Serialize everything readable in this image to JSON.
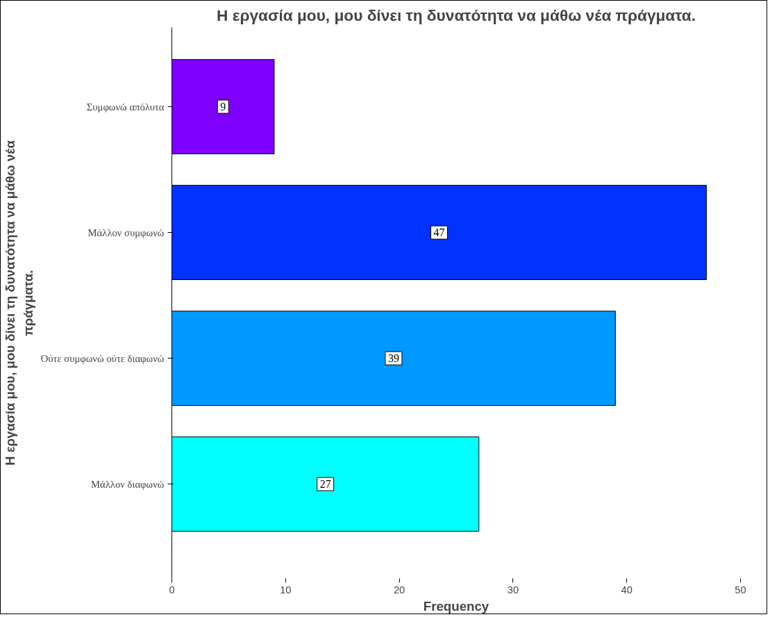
{
  "chart_data": {
    "type": "bar",
    "orientation": "horizontal",
    "title": "Η εργασία μου, μου δίνει τη δυνατότητα να μάθω νέα πράγματα.",
    "xlabel": "Frequency",
    "ylabel": "Η εργασία μου, μου δίνει τη δυνατότητα να μάθω νέα πράγματα.",
    "categories": [
      "Συμφωνώ απόλυτα",
      "Μάλλον συμφωνώ",
      "Ούτε συμφωνώ ούτε διαφωνώ",
      "Μάλλον διαφωνώ"
    ],
    "values": [
      9,
      47,
      39,
      27
    ],
    "colors": [
      "#8000ff",
      "#0033ff",
      "#0099ff",
      "#00ffff"
    ],
    "xlim": [
      0,
      50
    ],
    "xticks": [
      0,
      10,
      20,
      30,
      40,
      50
    ],
    "grid": false,
    "data_labels": true
  }
}
